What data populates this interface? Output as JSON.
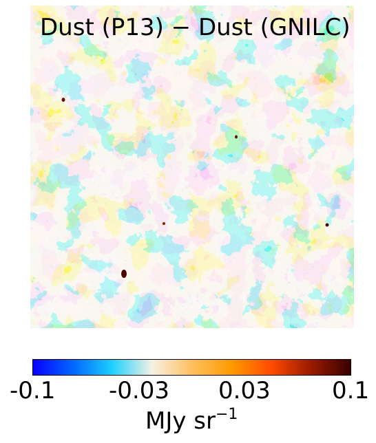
{
  "map": {
    "title": "Dust (P13) − Dust (GNILC)"
  },
  "colorbar": {
    "gradient_colors": [
      "#0a00ff",
      "#0066ff",
      "#1fd0ff",
      "#f6f0e4",
      "#ffc060",
      "#ff9a00",
      "#ff4a00",
      "#9a1a00",
      "#3a0000"
    ],
    "ticks": [
      "-0.1",
      "-0.03",
      "0.03",
      "0.1"
    ],
    "unit_base": "MJy sr",
    "unit_exponent": "−1"
  },
  "palette": {
    "cyan": "#1cc8f0",
    "neutral": "#f4ece0",
    "orange": "#f5a623",
    "dark_spot": "#5a0c00"
  }
}
